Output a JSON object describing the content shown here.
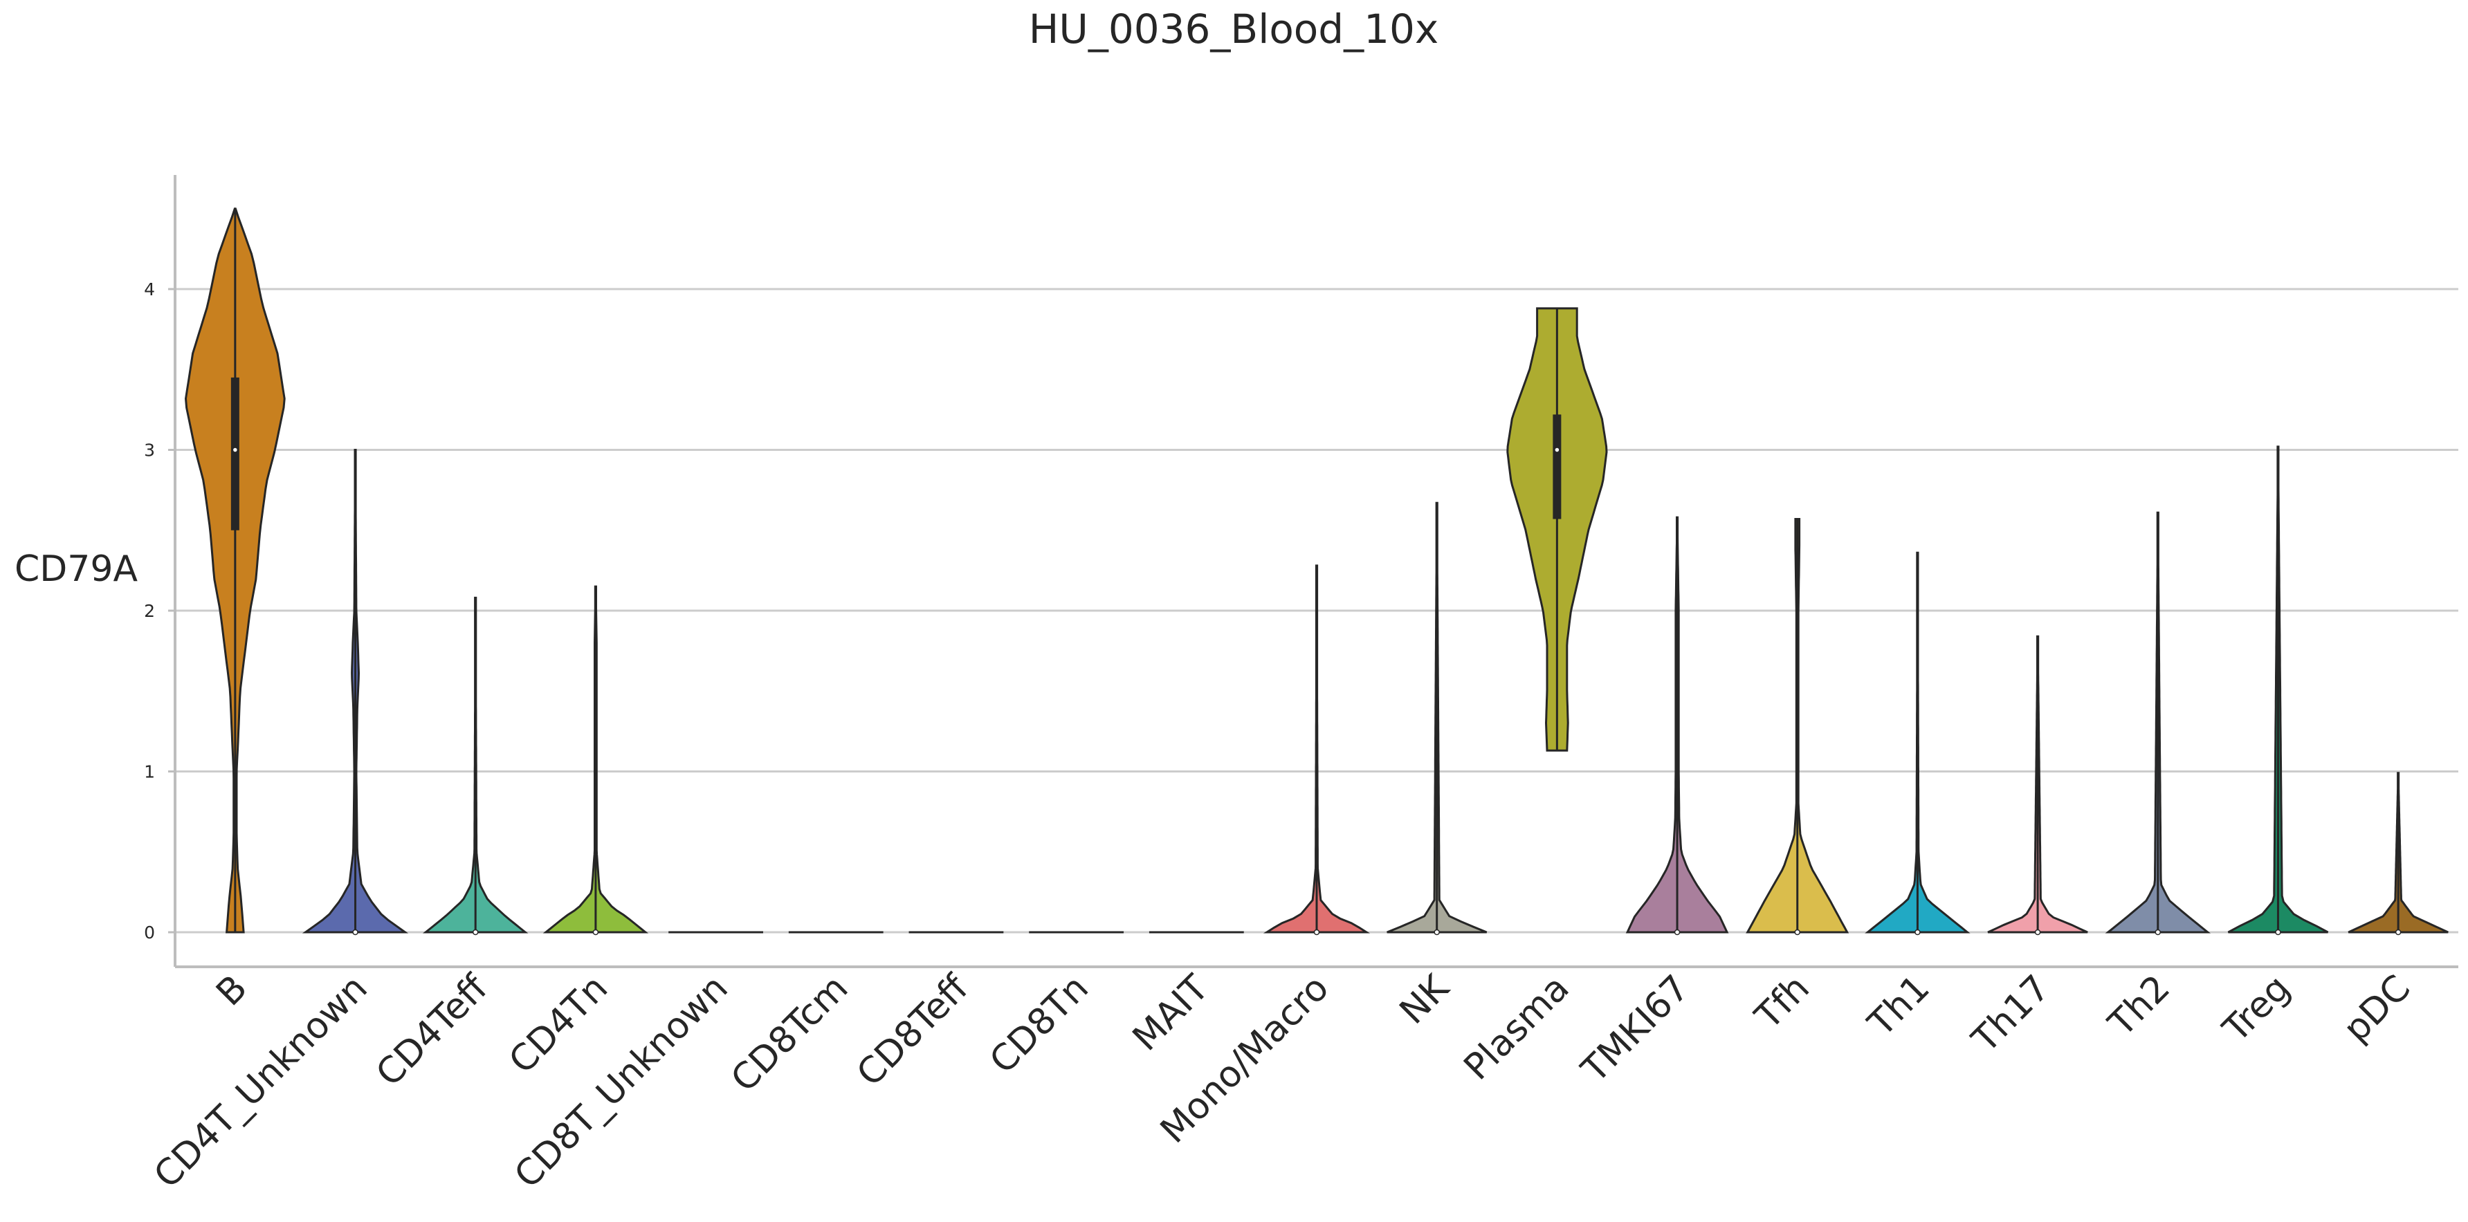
{
  "chart_data": {
    "type": "violin",
    "title": "HU_0036_Blood_10x",
    "ylabel": "CD79A",
    "xlabel": "",
    "ylim": [
      -0.2,
      4.7
    ],
    "yticks": [
      0,
      1,
      2,
      3,
      4
    ],
    "grid": "horizontal",
    "legend": "none",
    "categories": [
      "B",
      "CD4T_Unknown",
      "CD4Teff",
      "CD4Tn",
      "CD8T_Unknown",
      "CD8Tcm",
      "CD8Teff",
      "CD8Tn",
      "MAIT",
      "Mono/Macro",
      "NK",
      "Plasma",
      "TMKI67",
      "Tfh",
      "Th1",
      "Th17",
      "Th2",
      "Treg",
      "pDC"
    ],
    "colors": [
      "#c8801f",
      "#5b6aad",
      "#4db39b",
      "#8ebd3c",
      "#4d7fbf",
      "#5da0d0",
      "#7a6fbf",
      "#2fa89c",
      "#c2bd35",
      "#e07070",
      "#a8a89a",
      "#adac30",
      "#a97f9c",
      "#dabd4c",
      "#21a9c4",
      "#f0a0aa",
      "#7f8da8",
      "#1c8a63",
      "#9a6b25"
    ],
    "series": [
      {
        "category": "B",
        "min": 0,
        "max": 4.5,
        "q1": 2.5,
        "median": 3.0,
        "q3": 3.45,
        "density": [
          [
            0,
            0.17
          ],
          [
            0.2,
            0.12
          ],
          [
            0.4,
            0.05
          ],
          [
            0.6,
            0.03
          ],
          [
            1.0,
            0.03
          ],
          [
            1.2,
            0.06
          ],
          [
            1.5,
            0.1
          ],
          [
            2.0,
            0.3
          ],
          [
            2.2,
            0.42
          ],
          [
            2.5,
            0.5
          ],
          [
            2.8,
            0.63
          ],
          [
            3.0,
            0.8
          ],
          [
            3.3,
            1.0
          ],
          [
            3.6,
            0.85
          ],
          [
            3.9,
            0.55
          ],
          [
            4.2,
            0.35
          ],
          [
            4.4,
            0.12
          ],
          [
            4.5,
            0
          ]
        ]
      },
      {
        "category": "CD4T_Unknown",
        "min": 0,
        "max": 3.0,
        "median": 0,
        "density": [
          [
            0,
            1.0
          ],
          [
            0.1,
            0.55
          ],
          [
            0.2,
            0.3
          ],
          [
            0.3,
            0.12
          ],
          [
            0.5,
            0.04
          ],
          [
            1.0,
            0.02
          ],
          [
            1.4,
            0.04
          ],
          [
            1.6,
            0.07
          ],
          [
            1.8,
            0.05
          ],
          [
            2.0,
            0.02
          ],
          [
            3.0,
            0
          ]
        ]
      },
      {
        "category": "CD4Teff",
        "min": 0,
        "max": 2.08,
        "median": 0,
        "density": [
          [
            0,
            1.0
          ],
          [
            0.1,
            0.6
          ],
          [
            0.2,
            0.25
          ],
          [
            0.3,
            0.08
          ],
          [
            0.5,
            0.02
          ],
          [
            2.08,
            0
          ]
        ]
      },
      {
        "category": "CD4Tn",
        "min": 0,
        "max": 2.15,
        "median": 0,
        "density": [
          [
            0,
            1.0
          ],
          [
            0.1,
            0.6
          ],
          [
            0.15,
            0.35
          ],
          [
            0.25,
            0.08
          ],
          [
            0.5,
            0.02
          ],
          [
            1.8,
            0.02
          ],
          [
            2.15,
            0
          ]
        ]
      },
      {
        "category": "CD8T_Unknown",
        "min": 0,
        "max": 0,
        "median": 0,
        "density": [
          [
            0,
            1.0
          ]
        ]
      },
      {
        "category": "CD8Tcm",
        "min": 0,
        "max": 0,
        "median": 0,
        "density": [
          [
            0,
            1.0
          ]
        ]
      },
      {
        "category": "CD8Teff",
        "min": 0,
        "max": 0,
        "median": 0,
        "density": [
          [
            0,
            1.0
          ]
        ]
      },
      {
        "category": "CD8Tn",
        "min": 0,
        "max": 0,
        "median": 0,
        "density": [
          [
            0,
            1.0
          ]
        ]
      },
      {
        "category": "MAIT",
        "min": 0,
        "max": 0,
        "median": 0,
        "density": [
          [
            0,
            1.0
          ]
        ]
      },
      {
        "category": "Mono/Macro",
        "min": 0,
        "max": 2.28,
        "median": 0,
        "density": [
          [
            0,
            1.0
          ],
          [
            0.05,
            0.75
          ],
          [
            0.1,
            0.35
          ],
          [
            0.2,
            0.08
          ],
          [
            0.4,
            0.02
          ],
          [
            2.28,
            0
          ]
        ]
      },
      {
        "category": "NK",
        "min": 0,
        "max": 2.67,
        "median": 0,
        "density": [
          [
            0,
            1.0
          ],
          [
            0.05,
            0.6
          ],
          [
            0.1,
            0.25
          ],
          [
            0.2,
            0.05
          ],
          [
            2.67,
            0
          ]
        ]
      },
      {
        "category": "Plasma",
        "min": 1.13,
        "max": 3.88,
        "q1": 2.57,
        "median": 3.0,
        "q3": 3.22,
        "density": [
          [
            1.13,
            0.2
          ],
          [
            1.3,
            0.22
          ],
          [
            1.5,
            0.2
          ],
          [
            1.8,
            0.2
          ],
          [
            2.0,
            0.28
          ],
          [
            2.2,
            0.43
          ],
          [
            2.5,
            0.63
          ],
          [
            2.8,
            0.92
          ],
          [
            3.0,
            1.0
          ],
          [
            3.2,
            0.9
          ],
          [
            3.5,
            0.55
          ],
          [
            3.7,
            0.4
          ],
          [
            3.88,
            0.4
          ]
        ]
      },
      {
        "category": "TMKI67",
        "min": 0,
        "max": 2.58,
        "median": 0,
        "density": [
          [
            0,
            1.0
          ],
          [
            0.1,
            0.85
          ],
          [
            0.2,
            0.6
          ],
          [
            0.3,
            0.38
          ],
          [
            0.4,
            0.2
          ],
          [
            0.5,
            0.08
          ],
          [
            0.7,
            0.04
          ],
          [
            1.0,
            0.03
          ],
          [
            1.5,
            0.03
          ],
          [
            2.0,
            0.03
          ],
          [
            2.58,
            0
          ]
        ]
      },
      {
        "category": "Tfh",
        "min": 0,
        "max": 2.57,
        "median": 0,
        "density": [
          [
            0,
            1.0
          ],
          [
            0.2,
            0.65
          ],
          [
            0.4,
            0.28
          ],
          [
            0.6,
            0.06
          ],
          [
            0.8,
            0.02
          ],
          [
            2.0,
            0.02
          ],
          [
            2.4,
            0.04
          ],
          [
            2.57,
            0.04
          ]
        ]
      },
      {
        "category": "Th1",
        "min": 0,
        "max": 2.36,
        "median": 0,
        "density": [
          [
            0,
            1.0
          ],
          [
            0.1,
            0.6
          ],
          [
            0.2,
            0.2
          ],
          [
            0.3,
            0.06
          ],
          [
            0.5,
            0.02
          ],
          [
            2.36,
            0
          ]
        ]
      },
      {
        "category": "Th17",
        "min": 0,
        "max": 1.84,
        "median": 0,
        "density": [
          [
            0,
            1.0
          ],
          [
            0.05,
            0.65
          ],
          [
            0.1,
            0.25
          ],
          [
            0.2,
            0.06
          ],
          [
            1.84,
            0
          ]
        ]
      },
      {
        "category": "Th2",
        "min": 0,
        "max": 2.61,
        "median": 0,
        "density": [
          [
            0,
            1.0
          ],
          [
            0.1,
            0.6
          ],
          [
            0.2,
            0.22
          ],
          [
            0.3,
            0.06
          ],
          [
            2.61,
            0
          ]
        ]
      },
      {
        "category": "Treg",
        "min": 0,
        "max": 3.02,
        "median": 0,
        "density": [
          [
            0,
            1.0
          ],
          [
            0.05,
            0.7
          ],
          [
            0.1,
            0.35
          ],
          [
            0.2,
            0.08
          ],
          [
            3.02,
            0
          ]
        ]
      },
      {
        "category": "pDC",
        "min": 0,
        "max": 0.99,
        "median": 0,
        "density": [
          [
            0,
            1.0
          ],
          [
            0.05,
            0.65
          ],
          [
            0.1,
            0.3
          ],
          [
            0.2,
            0.06
          ],
          [
            0.99,
            0
          ]
        ]
      }
    ]
  }
}
